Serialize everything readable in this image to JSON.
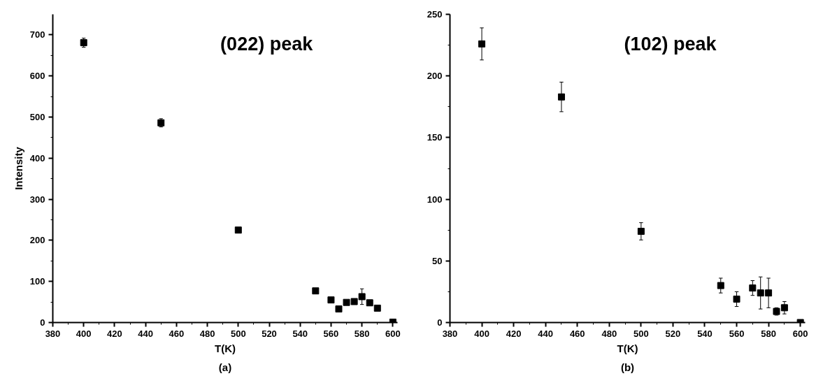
{
  "chart_data": [
    {
      "type": "scatter",
      "xlabel": "T(K)",
      "ylabel": "Intensity",
      "annotations": [
        "(022) peak",
        "(a)"
      ],
      "marker": "square",
      "x": [
        400,
        450,
        500,
        550,
        560,
        565,
        570,
        575,
        580,
        585,
        590,
        600
      ],
      "series": [
        {
          "color": "#000000",
          "values": [
            681,
            486,
            225,
            77,
            55,
            33,
            49,
            51,
            63,
            48,
            35,
            1
          ],
          "errors": [
            11,
            10,
            4,
            null,
            null,
            null,
            null,
            null,
            19,
            null,
            null,
            null
          ]
        }
      ],
      "xlim": [
        380,
        603
      ],
      "xticks": [
        380,
        400,
        420,
        440,
        460,
        480,
        500,
        520,
        540,
        560,
        580,
        600
      ],
      "ylim": [
        0,
        750
      ],
      "yticks": [
        0,
        100,
        200,
        300,
        400,
        500,
        600,
        700
      ]
    },
    {
      "type": "scatter",
      "xlabel": "T(K)",
      "annotations": [
        "(102) peak",
        "(b)"
      ],
      "marker": "square",
      "x": [
        400,
        450,
        500,
        550,
        560,
        570,
        575,
        580,
        585,
        590,
        600
      ],
      "series": [
        {
          "color": "#000000",
          "values": [
            226,
            183,
            74,
            30,
            19,
            28,
            24,
            24,
            9,
            12,
            0
          ],
          "errors": [
            13,
            12,
            7,
            6,
            6,
            6,
            13,
            12,
            3,
            5,
            null
          ]
        }
      ],
      "xlim": [
        380,
        603
      ],
      "xticks": [
        380,
        400,
        420,
        440,
        460,
        480,
        500,
        520,
        540,
        560,
        580,
        600
      ],
      "ylim": [
        0,
        250
      ],
      "yticks": [
        0,
        50,
        100,
        150,
        200,
        250
      ]
    }
  ]
}
